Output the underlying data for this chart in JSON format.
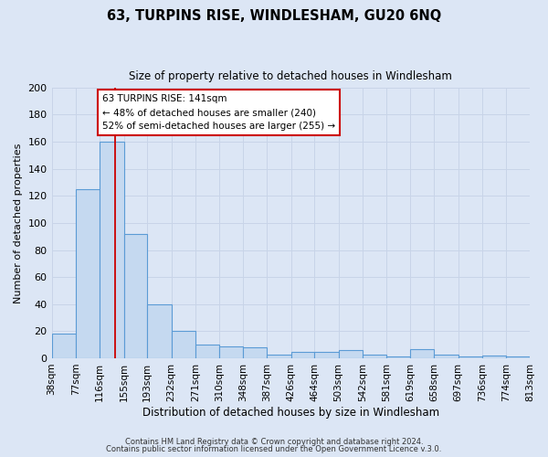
{
  "title": "63, TURPINS RISE, WINDLESHAM, GU20 6NQ",
  "subtitle": "Size of property relative to detached houses in Windlesham",
  "xlabel": "Distribution of detached houses by size in Windlesham",
  "ylabel": "Number of detached properties",
  "bin_labels": [
    "38sqm",
    "77sqm",
    "116sqm",
    "155sqm",
    "193sqm",
    "232sqm",
    "271sqm",
    "310sqm",
    "348sqm",
    "387sqm",
    "426sqm",
    "464sqm",
    "503sqm",
    "542sqm",
    "581sqm",
    "619sqm",
    "658sqm",
    "697sqm",
    "736sqm",
    "774sqm",
    "813sqm"
  ],
  "bin_edges": [
    38,
    77,
    116,
    155,
    193,
    232,
    271,
    310,
    348,
    387,
    426,
    464,
    503,
    542,
    581,
    619,
    658,
    697,
    736,
    774,
    813
  ],
  "bar_heights": [
    18,
    125,
    160,
    92,
    40,
    20,
    10,
    9,
    8,
    3,
    5,
    5,
    6,
    3,
    1,
    7,
    3,
    1,
    2,
    1
  ],
  "bar_color": "#c5d9f0",
  "bar_edge_color": "#5b9bd5",
  "bar_edge_width": 0.8,
  "red_line_x": 141,
  "red_line_color": "#cc0000",
  "annotation_line1": "63 TURPINS RISE: 141sqm",
  "annotation_line2": "← 48% of detached houses are smaller (240)",
  "annotation_line3": "52% of semi-detached houses are larger (255) →",
  "annotation_box_color": "#ffffff",
  "annotation_box_edge": "#cc0000",
  "ylim": [
    0,
    200
  ],
  "yticks": [
    0,
    20,
    40,
    60,
    80,
    100,
    120,
    140,
    160,
    180,
    200
  ],
  "grid_color": "#c8d4e8",
  "background_color": "#dce6f5",
  "footer_line1": "Contains HM Land Registry data © Crown copyright and database right 2024.",
  "footer_line2": "Contains public sector information licensed under the Open Government Licence v.3.0."
}
